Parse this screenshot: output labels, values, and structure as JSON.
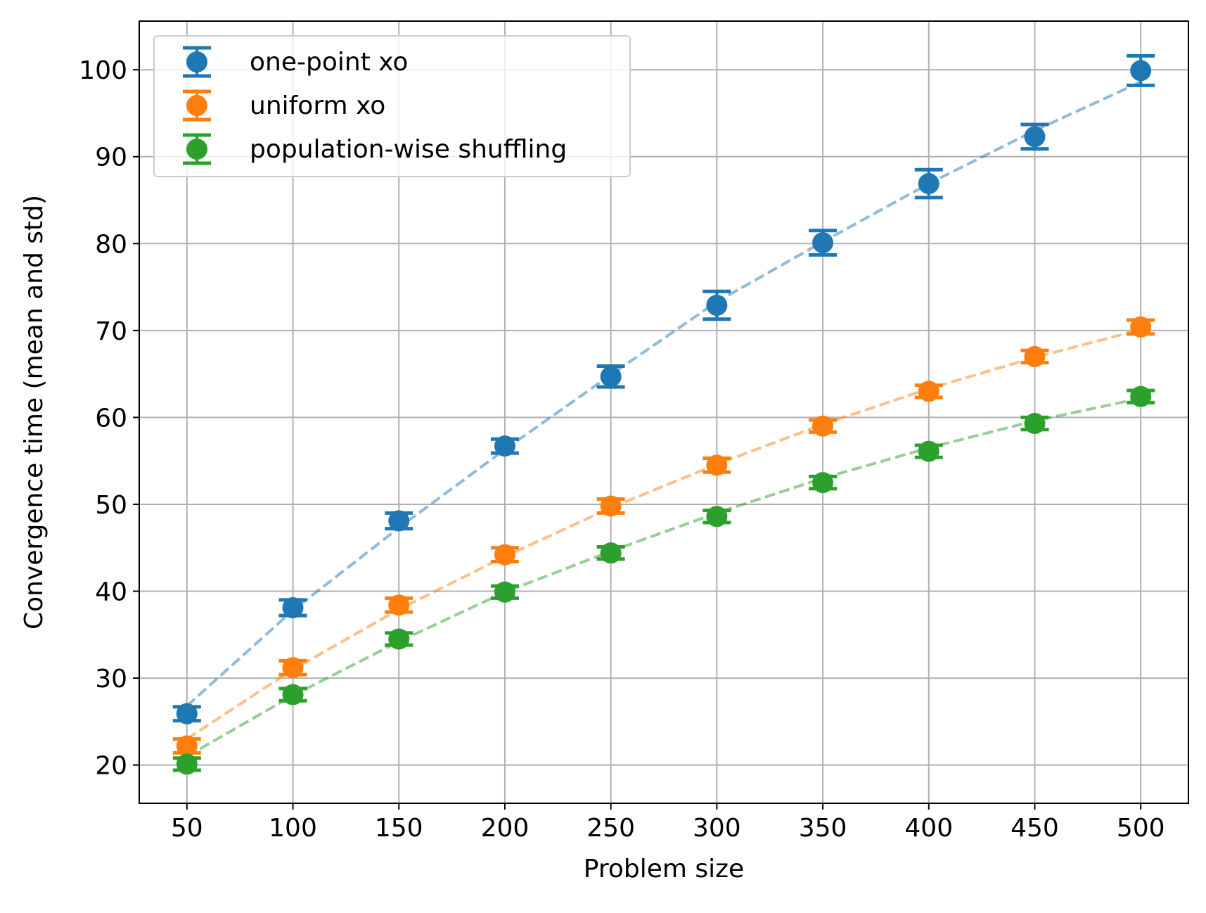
{
  "chart_data": {
    "type": "scatter",
    "title": "",
    "xlabel": "Problem size",
    "ylabel": "Convergence time (mean and std)",
    "x": [
      50,
      100,
      150,
      200,
      250,
      300,
      350,
      400,
      450,
      500
    ],
    "xticks": [
      50,
      100,
      150,
      200,
      250,
      300,
      350,
      400,
      450,
      500
    ],
    "yticks": [
      20,
      30,
      40,
      50,
      60,
      70,
      80,
      90,
      100
    ],
    "xlim": [
      27.5,
      522.5
    ],
    "ylim": [
      15.6,
      105.6
    ],
    "grid": true,
    "legend_position": "top-left",
    "series": [
      {
        "name": "one-point xo",
        "color": "#1f77b4",
        "values": [
          25.9,
          38.1,
          48.1,
          56.7,
          64.7,
          72.9,
          80.1,
          86.9,
          92.3,
          99.9
        ],
        "std": [
          0.8,
          0.9,
          0.9,
          0.8,
          1.2,
          1.6,
          1.4,
          1.6,
          1.4,
          1.7
        ],
        "fit": [
          26.8,
          37.8,
          47.3,
          56.3,
          64.9,
          73.3,
          80.2,
          86.9,
          93.0,
          98.6
        ]
      },
      {
        "name": "uniform xo",
        "color": "#ff7f0e",
        "values": [
          22.2,
          31.2,
          38.4,
          44.2,
          49.8,
          54.5,
          59.0,
          63.0,
          67.0,
          70.4
        ],
        "std": [
          0.8,
          0.8,
          0.8,
          0.8,
          0.8,
          0.8,
          0.7,
          0.7,
          0.7,
          0.8
        ],
        "fit": [
          23.0,
          31.0,
          37.9,
          44.0,
          49.6,
          54.6,
          59.2,
          63.3,
          66.9,
          70.1
        ]
      },
      {
        "name": "population-wise shuffling",
        "color": "#2ca02c",
        "values": [
          20.1,
          28.1,
          34.5,
          39.9,
          44.4,
          48.6,
          52.5,
          56.1,
          59.3,
          62.4
        ],
        "std": [
          0.7,
          0.7,
          0.7,
          0.7,
          0.7,
          0.7,
          0.7,
          0.7,
          0.7,
          0.7
        ],
        "fit": [
          21.0,
          28.0,
          34.2,
          39.9,
          44.6,
          49.0,
          53.0,
          56.5,
          59.6,
          62.2
        ]
      }
    ]
  }
}
